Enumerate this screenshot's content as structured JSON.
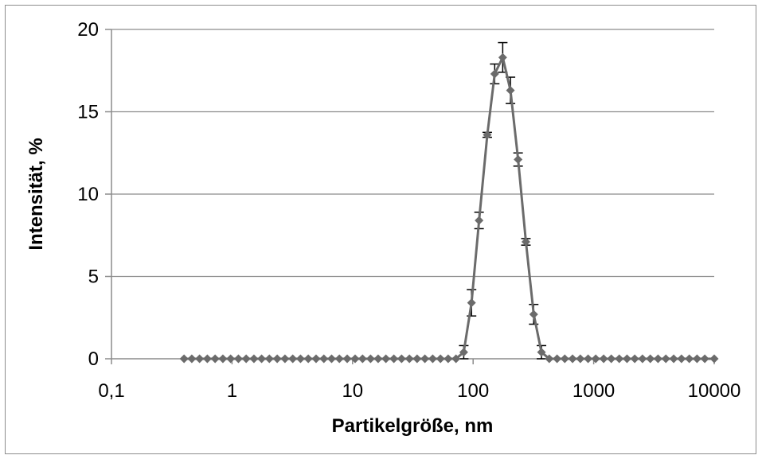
{
  "chart_data": {
    "type": "line",
    "title": "",
    "xlabel": "Partikelgröße, nm",
    "ylabel": "Intensität, %",
    "x_scale": "log",
    "xlim": [
      0.1,
      10000
    ],
    "ylim": [
      0,
      20
    ],
    "x_tick_labels": [
      "0,1",
      "1",
      "10",
      "100",
      "1000",
      "10000"
    ],
    "y_tick_labels": [
      "0",
      "5",
      "10",
      "15",
      "20"
    ],
    "grid": "horizontal",
    "legend": "none",
    "colors": {
      "series": "#6b6b6b",
      "error_bar": "#000000",
      "grid": "#8c8c8c"
    },
    "series": [
      {
        "marker": "diamond",
        "x": [
          0.4,
          0.464,
          0.538,
          0.624,
          0.724,
          0.84,
          0.974,
          1.13,
          1.31,
          1.52,
          1.76,
          2.04,
          2.37,
          2.75,
          3.19,
          3.7,
          4.29,
          4.98,
          5.78,
          6.7,
          7.77,
          9.02,
          10.5,
          12.1,
          14.1,
          16.3,
          18.9,
          22.0,
          25.5,
          29.6,
          34.3,
          39.8,
          46.2,
          53.6,
          62.1,
          72.1,
          83.6,
          97.0,
          112,
          131,
          151,
          176,
          204,
          236,
          274,
          318,
          369,
          428,
          497,
          576,
          668,
          775,
          899,
          1040,
          1210,
          1400,
          1630,
          1890,
          2190,
          2540,
          2950,
          3420,
          3970,
          4610,
          5350,
          6210,
          7200,
          8350,
          10000
        ],
        "y": [
          0,
          0,
          0,
          0,
          0,
          0,
          0,
          0,
          0,
          0,
          0,
          0,
          0,
          0,
          0,
          0,
          0,
          0,
          0,
          0,
          0,
          0,
          0,
          0,
          0,
          0,
          0,
          0,
          0,
          0,
          0,
          0,
          0,
          0,
          0,
          0,
          0.4,
          3.4,
          8.4,
          13.6,
          17.3,
          18.3,
          16.3,
          12.1,
          7.1,
          2.7,
          0.4,
          0,
          0,
          0,
          0,
          0,
          0,
          0,
          0,
          0,
          0,
          0,
          0,
          0,
          0,
          0,
          0,
          0,
          0,
          0,
          0,
          0,
          0
        ],
        "error": [
          0,
          0,
          0,
          0,
          0,
          0,
          0,
          0,
          0,
          0,
          0,
          0,
          0,
          0,
          0,
          0,
          0,
          0,
          0,
          0,
          0,
          0,
          0,
          0,
          0,
          0,
          0,
          0,
          0,
          0,
          0,
          0,
          0,
          0,
          0,
          0,
          0.4,
          0.8,
          0.5,
          0.15,
          0.6,
          0.9,
          0.8,
          0.4,
          0.2,
          0.6,
          0.4,
          0,
          0,
          0,
          0,
          0,
          0,
          0,
          0,
          0,
          0,
          0,
          0,
          0,
          0,
          0,
          0,
          0,
          0,
          0,
          0,
          0,
          0
        ]
      }
    ]
  }
}
